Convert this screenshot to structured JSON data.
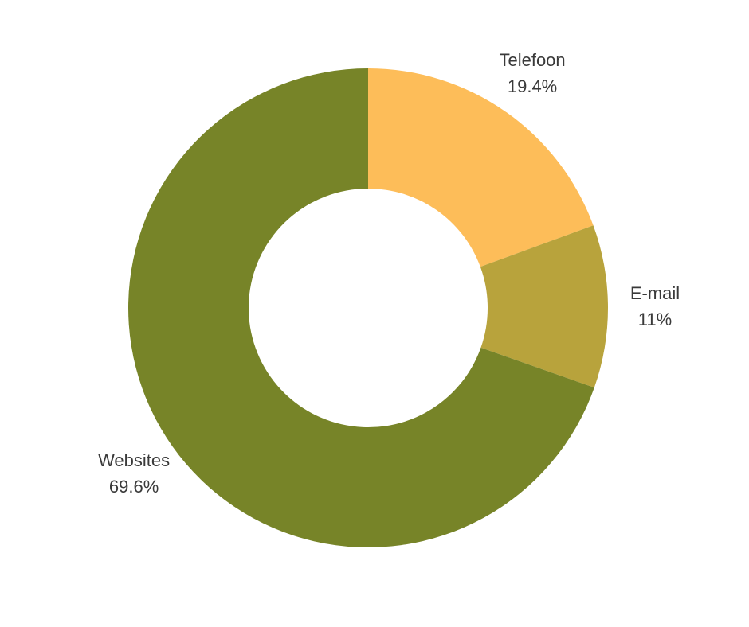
{
  "chart_data": {
    "type": "donut",
    "categories": [
      "Telefoon",
      "E-mail",
      "Websites"
    ],
    "values": [
      19.4,
      11,
      69.6
    ],
    "value_labels": [
      "19.4%",
      "11%",
      "69.6%"
    ],
    "colors": [
      "#fdbd59",
      "#b8a33c",
      "#778428"
    ]
  }
}
